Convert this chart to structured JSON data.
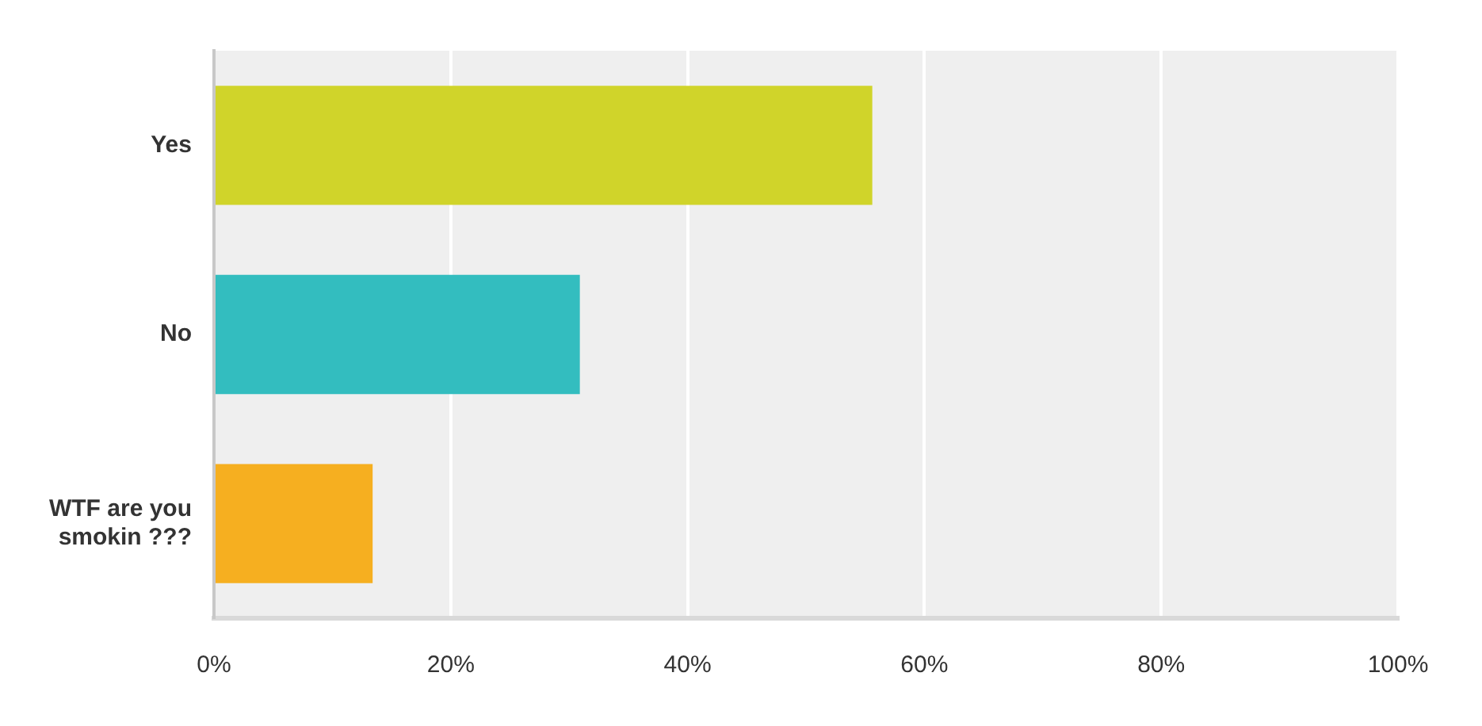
{
  "chart_data": {
    "type": "bar",
    "orientation": "horizontal",
    "categories": [
      "Yes",
      "No",
      "WTF are you smokin ???"
    ],
    "values": [
      55.6,
      30.9,
      13.4
    ],
    "colors": [
      "#d0d42a",
      "#33bdbf",
      "#f6af20"
    ],
    "xlim": [
      0,
      100
    ],
    "xticks": [
      {
        "value": 0,
        "label": "0%"
      },
      {
        "value": 20,
        "label": "20%"
      },
      {
        "value": 40,
        "label": "40%"
      },
      {
        "value": 60,
        "label": "60%"
      },
      {
        "value": 80,
        "label": "80%"
      },
      {
        "value": 100,
        "label": "100%"
      }
    ],
    "grid": "x"
  }
}
